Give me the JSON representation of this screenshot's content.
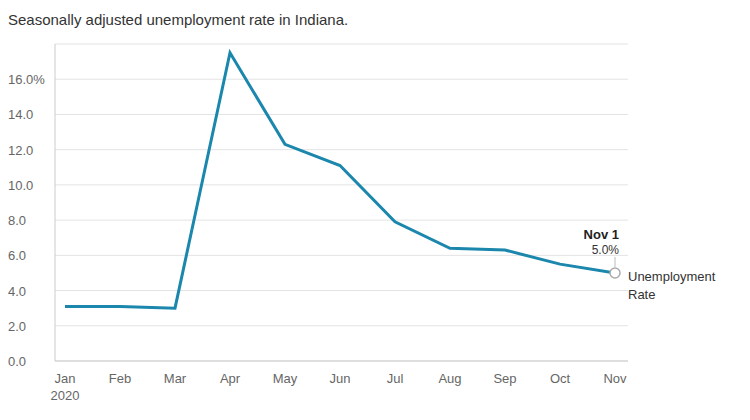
{
  "chart_data": {
    "type": "line",
    "title": "Seasonally adjusted unemployment rate in Indiana.",
    "categories": [
      "Jan 2020",
      "Feb",
      "Mar",
      "Apr",
      "May",
      "Jun",
      "Jul",
      "Aug",
      "Sep",
      "Oct",
      "Nov"
    ],
    "series": [
      {
        "name": "Unemployment Rate",
        "color": "#1b87ad",
        "values": [
          3.1,
          3.1,
          3.0,
          17.5,
          12.3,
          11.1,
          7.9,
          6.4,
          6.3,
          5.5,
          5.0
        ]
      }
    ],
    "ylim": [
      0,
      18
    ],
    "yticks": [
      {
        "value": 0,
        "label": "0.0"
      },
      {
        "value": 2,
        "label": "2.0"
      },
      {
        "value": 4,
        "label": "4.0"
      },
      {
        "value": 6,
        "label": "6.0"
      },
      {
        "value": 8,
        "label": "8.0"
      },
      {
        "value": 10,
        "label": "10.0"
      },
      {
        "value": 12,
        "label": "12.0"
      },
      {
        "value": 14,
        "label": "14.0"
      },
      {
        "value": 16,
        "label": "16.0%"
      }
    ],
    "grid": true,
    "annotations": [
      {
        "x": "Nov",
        "y": 5.0,
        "title": "Nov 1",
        "label": "5.0%"
      }
    ]
  }
}
